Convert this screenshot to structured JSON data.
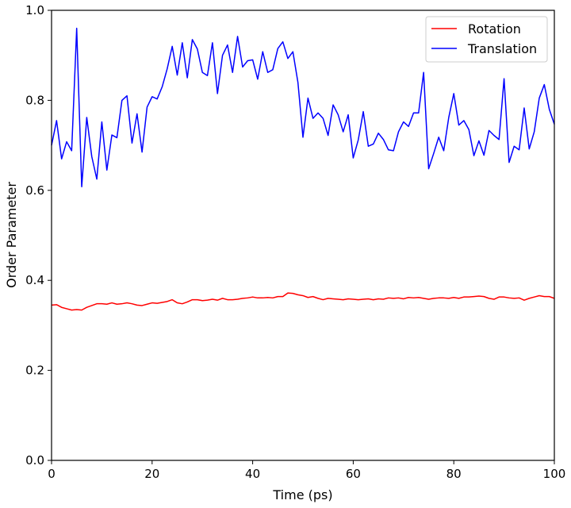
{
  "chart_data": {
    "type": "line",
    "title": "",
    "xlabel": "Time (ps)",
    "ylabel": "Order Parameter",
    "xlim": [
      0,
      100
    ],
    "ylim": [
      0.0,
      1.0
    ],
    "xticks": [
      0,
      20,
      40,
      60,
      80,
      100
    ],
    "xtick_labels": [
      "0",
      "20",
      "40",
      "60",
      "80",
      "100"
    ],
    "yticks": [
      0.0,
      0.2,
      0.4,
      0.6,
      0.8,
      1.0
    ],
    "ytick_labels": [
      "0.0",
      "0.2",
      "0.4",
      "0.6",
      "0.8",
      "1.0"
    ],
    "grid": false,
    "legend_position": "top-right",
    "x": [
      0,
      1,
      2,
      3,
      4,
      5,
      6,
      7,
      8,
      9,
      10,
      11,
      12,
      13,
      14,
      15,
      16,
      17,
      18,
      19,
      20,
      21,
      22,
      23,
      24,
      25,
      26,
      27,
      28,
      29,
      30,
      31,
      32,
      33,
      34,
      35,
      36,
      37,
      38,
      39,
      40,
      41,
      42,
      43,
      44,
      45,
      46,
      47,
      48,
      49,
      50,
      51,
      52,
      53,
      54,
      55,
      56,
      57,
      58,
      59,
      60,
      61,
      62,
      63,
      64,
      65,
      66,
      67,
      68,
      69,
      70,
      71,
      72,
      73,
      74,
      75,
      76,
      77,
      78,
      79,
      80,
      81,
      82,
      83,
      84,
      85,
      86,
      87,
      88,
      89,
      90,
      91,
      92,
      93,
      94,
      95,
      96,
      97,
      98,
      99,
      100
    ],
    "series": [
      {
        "name": "Rotation",
        "color": "#ff0000",
        "values": [
          0.345,
          0.346,
          0.34,
          0.337,
          0.334,
          0.335,
          0.334,
          0.34,
          0.344,
          0.348,
          0.348,
          0.347,
          0.35,
          0.347,
          0.348,
          0.35,
          0.348,
          0.345,
          0.344,
          0.347,
          0.35,
          0.349,
          0.351,
          0.353,
          0.357,
          0.35,
          0.348,
          0.352,
          0.357,
          0.357,
          0.355,
          0.356,
          0.358,
          0.356,
          0.36,
          0.357,
          0.357,
          0.358,
          0.36,
          0.361,
          0.363,
          0.361,
          0.361,
          0.362,
          0.361,
          0.364,
          0.364,
          0.372,
          0.371,
          0.368,
          0.366,
          0.362,
          0.364,
          0.36,
          0.357,
          0.36,
          0.359,
          0.358,
          0.357,
          0.359,
          0.358,
          0.357,
          0.358,
          0.359,
          0.357,
          0.359,
          0.358,
          0.361,
          0.36,
          0.361,
          0.359,
          0.362,
          0.361,
          0.362,
          0.36,
          0.358,
          0.36,
          0.361,
          0.361,
          0.36,
          0.362,
          0.36,
          0.363,
          0.363,
          0.364,
          0.365,
          0.364,
          0.36,
          0.358,
          0.363,
          0.363,
          0.361,
          0.36,
          0.361,
          0.356,
          0.36,
          0.363,
          0.366,
          0.364,
          0.364,
          0.36
        ]
      },
      {
        "name": "Translation",
        "color": "#0000ff",
        "values": [
          0.7,
          0.755,
          0.67,
          0.708,
          0.688,
          0.96,
          0.608,
          0.762,
          0.675,
          0.625,
          0.752,
          0.645,
          0.723,
          0.717,
          0.8,
          0.81,
          0.705,
          0.77,
          0.685,
          0.785,
          0.808,
          0.803,
          0.83,
          0.87,
          0.92,
          0.856,
          0.928,
          0.85,
          0.935,
          0.914,
          0.862,
          0.855,
          0.928,
          0.815,
          0.9,
          0.923,
          0.862,
          0.942,
          0.874,
          0.888,
          0.89,
          0.847,
          0.908,
          0.862,
          0.868,
          0.915,
          0.93,
          0.893,
          0.908,
          0.84,
          0.718,
          0.805,
          0.76,
          0.772,
          0.76,
          0.722,
          0.79,
          0.768,
          0.73,
          0.768,
          0.672,
          0.712,
          0.775,
          0.698,
          0.703,
          0.727,
          0.713,
          0.69,
          0.688,
          0.73,
          0.752,
          0.742,
          0.772,
          0.772,
          0.862,
          0.648,
          0.682,
          0.718,
          0.688,
          0.762,
          0.815,
          0.745,
          0.755,
          0.735,
          0.677,
          0.71,
          0.678,
          0.733,
          0.722,
          0.713,
          0.848,
          0.662,
          0.698,
          0.69,
          0.783,
          0.692,
          0.73,
          0.805,
          0.835,
          0.78,
          0.747
        ]
      }
    ]
  }
}
